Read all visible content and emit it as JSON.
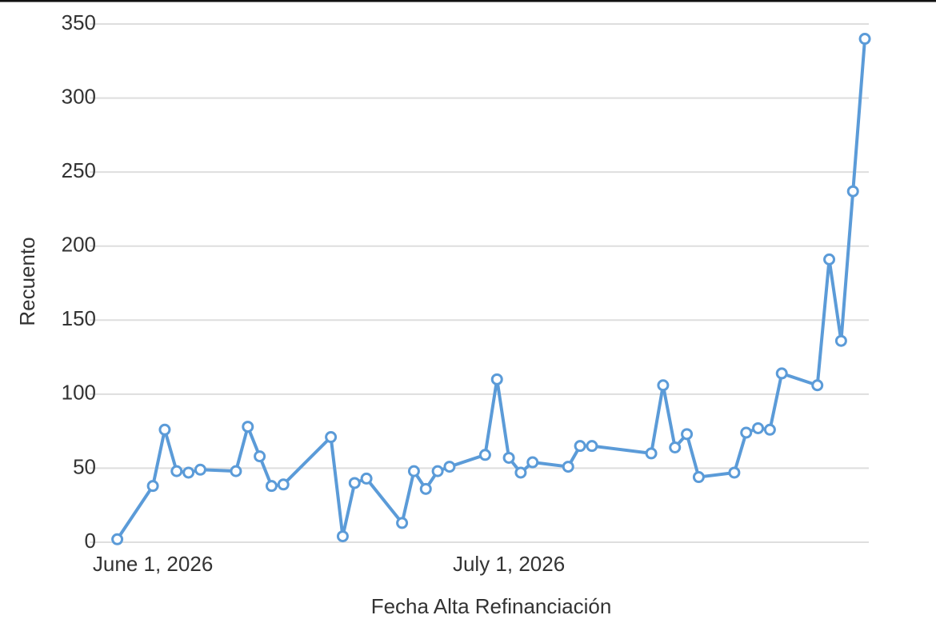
{
  "chart_data": {
    "type": "line",
    "x_label": "Fecha Alta Refinanciación",
    "y_label": "Recuento",
    "x": [
      "2026-05-29",
      "2026-06-01",
      "2026-06-02",
      "2026-06-03",
      "2026-06-04",
      "2026-06-05",
      "2026-06-08",
      "2026-06-09",
      "2026-06-10",
      "2026-06-11",
      "2026-06-12",
      "2026-06-16",
      "2026-06-17",
      "2026-06-18",
      "2026-06-19",
      "2026-06-22",
      "2026-06-23",
      "2026-06-24",
      "2026-06-25",
      "2026-06-26",
      "2026-06-29",
      "2026-06-30",
      "2026-07-01",
      "2026-07-02",
      "2026-07-03",
      "2026-07-06",
      "2026-07-07",
      "2026-07-08",
      "2026-07-13",
      "2026-07-14",
      "2026-07-15",
      "2026-07-16",
      "2026-07-17",
      "2026-07-20",
      "2026-07-21",
      "2026-07-22",
      "2026-07-23",
      "2026-07-24",
      "2026-07-27",
      "2026-07-28",
      "2026-07-29",
      "2026-07-30",
      "2026-07-31"
    ],
    "series": [
      {
        "name": "Recuento",
        "color": "#5b9bd8",
        "values": [
          2,
          38,
          76,
          48,
          47,
          49,
          48,
          78,
          58,
          38,
          39,
          71,
          4,
          40,
          43,
          13,
          48,
          36,
          48,
          51,
          59,
          110,
          57,
          47,
          54,
          51,
          65,
          65,
          60,
          106,
          64,
          73,
          44,
          47,
          74,
          77,
          76,
          114,
          106,
          191,
          136,
          237,
          340
        ]
      }
    ],
    "xlim": [
      "2026-05-26T16:00Z",
      "2026-07-31T08:00Z"
    ],
    "xticks": [
      {
        "value": "2026-06-01",
        "label": "June 1, 2026"
      },
      {
        "value": "2026-07-01",
        "label": "July 1, 2026"
      }
    ],
    "ylim": [
      0,
      350
    ],
    "yticks": [
      0,
      50,
      100,
      150,
      200,
      250,
      300,
      350
    ],
    "grid": true
  }
}
